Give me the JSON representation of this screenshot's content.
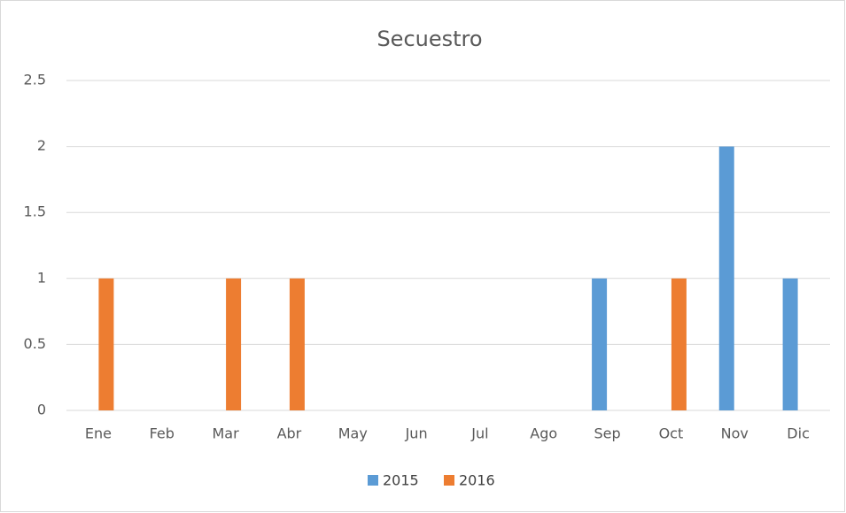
{
  "chart_data": {
    "type": "bar",
    "title": "Secuestro",
    "categories": [
      "Ene",
      "Feb",
      "Mar",
      "Abr",
      "May",
      "Jun",
      "Jul",
      "Ago",
      "Sep",
      "Oct",
      "Nov",
      "Dic"
    ],
    "series": [
      {
        "name": "2015",
        "color": "#5b9bd5",
        "values": [
          0,
          0,
          0,
          0,
          0,
          0,
          0,
          0,
          1,
          0,
          2,
          1
        ]
      },
      {
        "name": "2016",
        "color": "#ed7d31",
        "values": [
          1,
          0,
          1,
          1,
          0,
          0,
          0,
          0,
          0,
          1,
          0,
          0
        ]
      }
    ],
    "ylim": [
      0,
      2.5
    ],
    "yticks": [
      0,
      0.5,
      1,
      1.5,
      2,
      2.5
    ],
    "grid": true,
    "legend": "bottom"
  }
}
